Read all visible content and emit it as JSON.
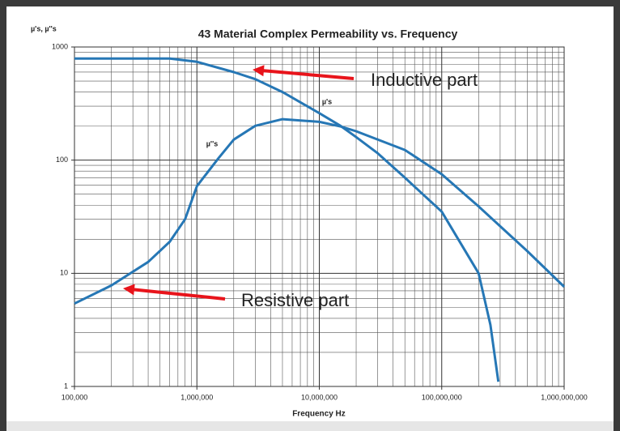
{
  "chart_data": {
    "type": "line",
    "title": "43 Material Complex Permeability vs. Frequency",
    "x_label": "Frequency Hz",
    "y_label": "µ's, µ''s",
    "log_x": true,
    "log_y": true,
    "grid": true,
    "minor_grid": true,
    "xlim": [
      100000,
      1000000000
    ],
    "xticks": [
      {
        "value": 100000,
        "label": "100,000"
      },
      {
        "value": 1000000,
        "label": "1,000,000"
      },
      {
        "value": 10000000,
        "label": "10,000,000"
      },
      {
        "value": 100000000,
        "label": "100,000,000"
      },
      {
        "value": 1000000000,
        "label": "1,000,000,000"
      }
    ],
    "ylim": [
      1,
      1000
    ],
    "yticks": [
      1,
      10,
      100,
      1000
    ],
    "series": [
      {
        "name": "µ's",
        "color": "#2677b5",
        "x": [
          100000,
          300000,
          600000,
          1000000,
          2000000,
          3000000,
          5000000,
          10000000,
          15000000,
          20000000,
          30000000,
          50000000,
          100000000,
          200000000,
          250000000,
          290000000
        ],
        "values": [
          790,
          790,
          790,
          740,
          600,
          520,
          400,
          260,
          200,
          160,
          115,
          70,
          35,
          10,
          3.5,
          1.1
        ]
      },
      {
        "name": "µ''s",
        "color": "#2677b5",
        "x": [
          100000,
          200000,
          400000,
          600000,
          800000,
          1000000,
          1500000,
          2000000,
          3000000,
          5000000,
          10000000,
          15000000,
          20000000,
          50000000,
          100000000,
          200000000,
          500000000,
          1000000000
        ],
        "values": [
          5.4,
          7.8,
          12.6,
          19,
          30,
          59,
          104,
          152,
          201,
          230,
          218,
          198,
          180,
          123,
          75,
          39,
          15.7,
          7.6
        ]
      }
    ],
    "annotations": [
      {
        "text": "Inductive part",
        "color": "#e8141b"
      },
      {
        "text": "Resistive part",
        "color": "#e8141b"
      }
    ]
  }
}
